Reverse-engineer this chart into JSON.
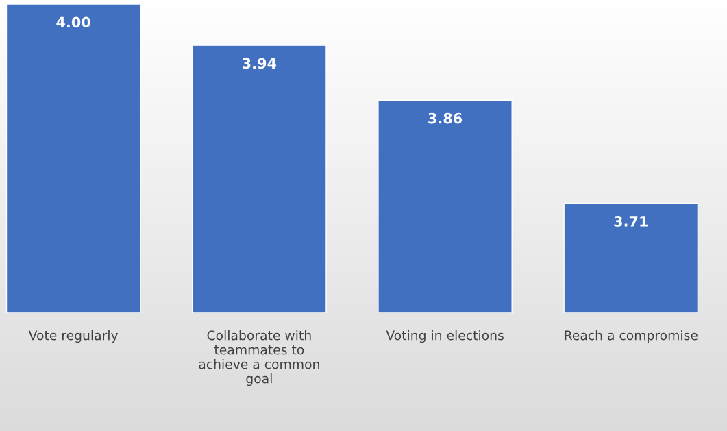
{
  "chart_data": {
    "type": "bar",
    "categories": [
      "Vote regularly",
      "Collaborate with\nteammates to\nachieve a common\ngoal",
      "Voting in elections",
      "Reach a compromise"
    ],
    "values": [
      4.0,
      3.94,
      3.86,
      3.71
    ],
    "value_labels": [
      "4.00",
      "3.94",
      "3.86",
      "3.71"
    ],
    "color": "#4170c0",
    "ylim": [
      3.55,
      4.0
    ],
    "tick_labels": "x",
    "grid": false,
    "legend": false
  }
}
